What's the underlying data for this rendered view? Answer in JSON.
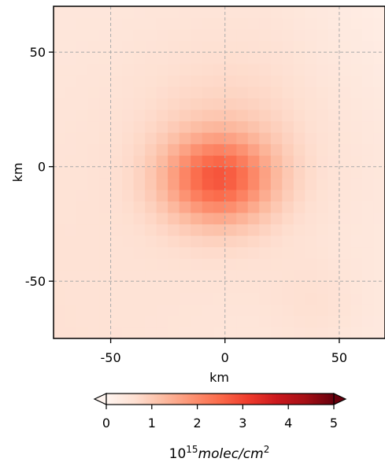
{
  "chart_data": {
    "type": "heatmap",
    "title": "",
    "xlabel": "km",
    "ylabel": "km",
    "xlim": [
      -75,
      70
    ],
    "ylim": [
      -75,
      70
    ],
    "xticks": [
      -50,
      0,
      50
    ],
    "yticks": [
      -50,
      0,
      50
    ],
    "xtick_labels": [
      "-50",
      "0",
      "50"
    ],
    "ytick_labels": [
      "-50",
      "0",
      "50"
    ],
    "grid": true,
    "colormap": "Reds",
    "colorbar": {
      "orientation": "horizontal",
      "vmin": 0,
      "vmax": 5,
      "extend": "both",
      "ticks": [
        0,
        1,
        2,
        3,
        4,
        5
      ],
      "tick_labels": [
        "0",
        "1",
        "2",
        "3",
        "4",
        "5"
      ],
      "label_base": "10",
      "label_exp": "15",
      "label_unit": "molec/cm",
      "label_unit_exp": "2"
    },
    "field": {
      "peak_x_km": -3,
      "peak_y_km": -5,
      "peak_value": 2.4,
      "background_value": 0.5,
      "cell_km": 5
    }
  }
}
